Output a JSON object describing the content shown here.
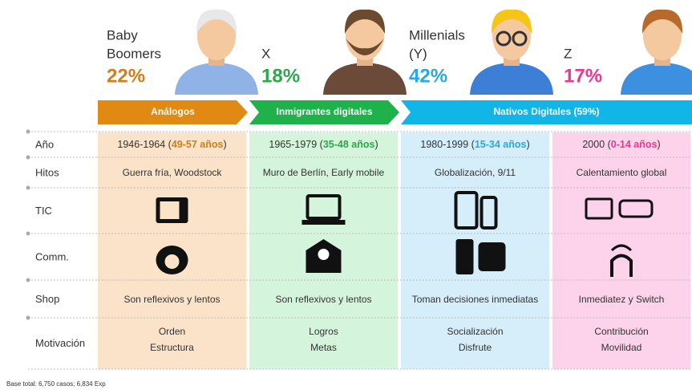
{
  "header": {
    "generations": [
      {
        "name": [
          "Baby",
          "Boomers"
        ],
        "percent": "22%",
        "color": "#d07f1c"
      },
      {
        "name": [
          "X"
        ],
        "percent": "18%",
        "color": "#2aa84a"
      },
      {
        "name": [
          "Millenials",
          "(Y)"
        ],
        "percent": "42%",
        "color": "#27a9e1"
      },
      {
        "name": [
          "Z"
        ],
        "percent": "17%",
        "color": "#e8388f"
      }
    ]
  },
  "arrows": [
    {
      "label": "Análogos",
      "color": "#e08a14"
    },
    {
      "label": "Inmigrantes digitales",
      "color": "#1fb24a"
    },
    {
      "label": "Nativos Digitales (59%)",
      "color": "#11b5e8"
    }
  ],
  "table": {
    "row_labels": [
      "Año",
      "Hitos",
      "TIC",
      "Comm.",
      "Shop",
      "Motivación"
    ],
    "columns": [
      {
        "year": [
          "1946-1964 (",
          "49-57 años",
          ")"
        ],
        "hitos": "Guerra fría, Woodstock",
        "shop": "Son reflexivos y lentos",
        "motivacion": [
          "Orden",
          "Estructura"
        ],
        "background": "#fbe3c9"
      },
      {
        "year": [
          "1965-1979 (",
          "35-48 años",
          ")"
        ],
        "hitos": "Muro de Berlín, Early mobile",
        "shop": "Son reflexivos y lentos",
        "motivacion": [
          "Logros",
          "Metas"
        ],
        "background": "#d4f5dc"
      },
      {
        "year": [
          "1980-1999 (",
          "15-34 años",
          ")"
        ],
        "hitos": "Globalización, 9/11",
        "shop": "Toman decisiones inmediatas",
        "motivacion": [
          "Socialización",
          "Disfrute"
        ],
        "background": "#d6eefa"
      },
      {
        "year": [
          "2000 (",
          "0-14 años",
          ")"
        ],
        "hitos": "Calentamiento global",
        "shop": "Inmediatez y Switch",
        "motivacion": [
          "Contribución",
          "Movilidad"
        ],
        "background": "#fcd3ea"
      }
    ]
  },
  "footer": "Base total: 6,750 casos;  6,834 Exp"
}
